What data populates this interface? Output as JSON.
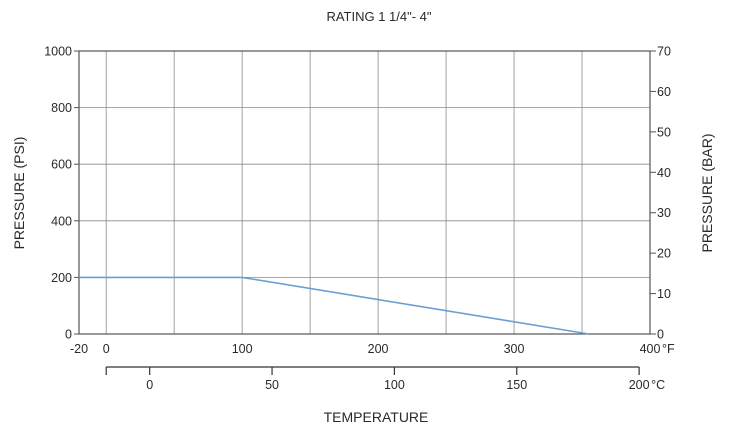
{
  "chart_data": {
    "type": "line",
    "title": "RATING 1 1/4\"- 4\"",
    "xlabel": "TEMPERATURE",
    "ylabel_left": "PRESSURE  (PSI)",
    "ylabel_right": "PRESSURE  (BAR)",
    "x_unit_f": "°F",
    "x_unit_c": "°C",
    "xlim_f": [
      -20,
      400
    ],
    "ylim_psi": [
      0,
      1000
    ],
    "ylim_bar": [
      0,
      70
    ],
    "x_ticks_f": [
      "-20",
      "0",
      "100",
      "200",
      "300",
      "400"
    ],
    "x_ticks_c": [
      "0",
      "50",
      "100",
      "150",
      "200"
    ],
    "x_ticks_c_values": [
      0,
      50,
      100,
      150,
      200
    ],
    "y_ticks_psi": [
      "0",
      "200",
      "400",
      "600",
      "800",
      "1000"
    ],
    "y_ticks_bar": [
      "0",
      "10",
      "20",
      "30",
      "40",
      "50",
      "60",
      "70"
    ],
    "grid": true,
    "line_color": "#6b9fd4",
    "series": [
      {
        "x": [
          -20,
          100,
          355
        ],
        "y": [
          200,
          200,
          0
        ]
      }
    ]
  }
}
